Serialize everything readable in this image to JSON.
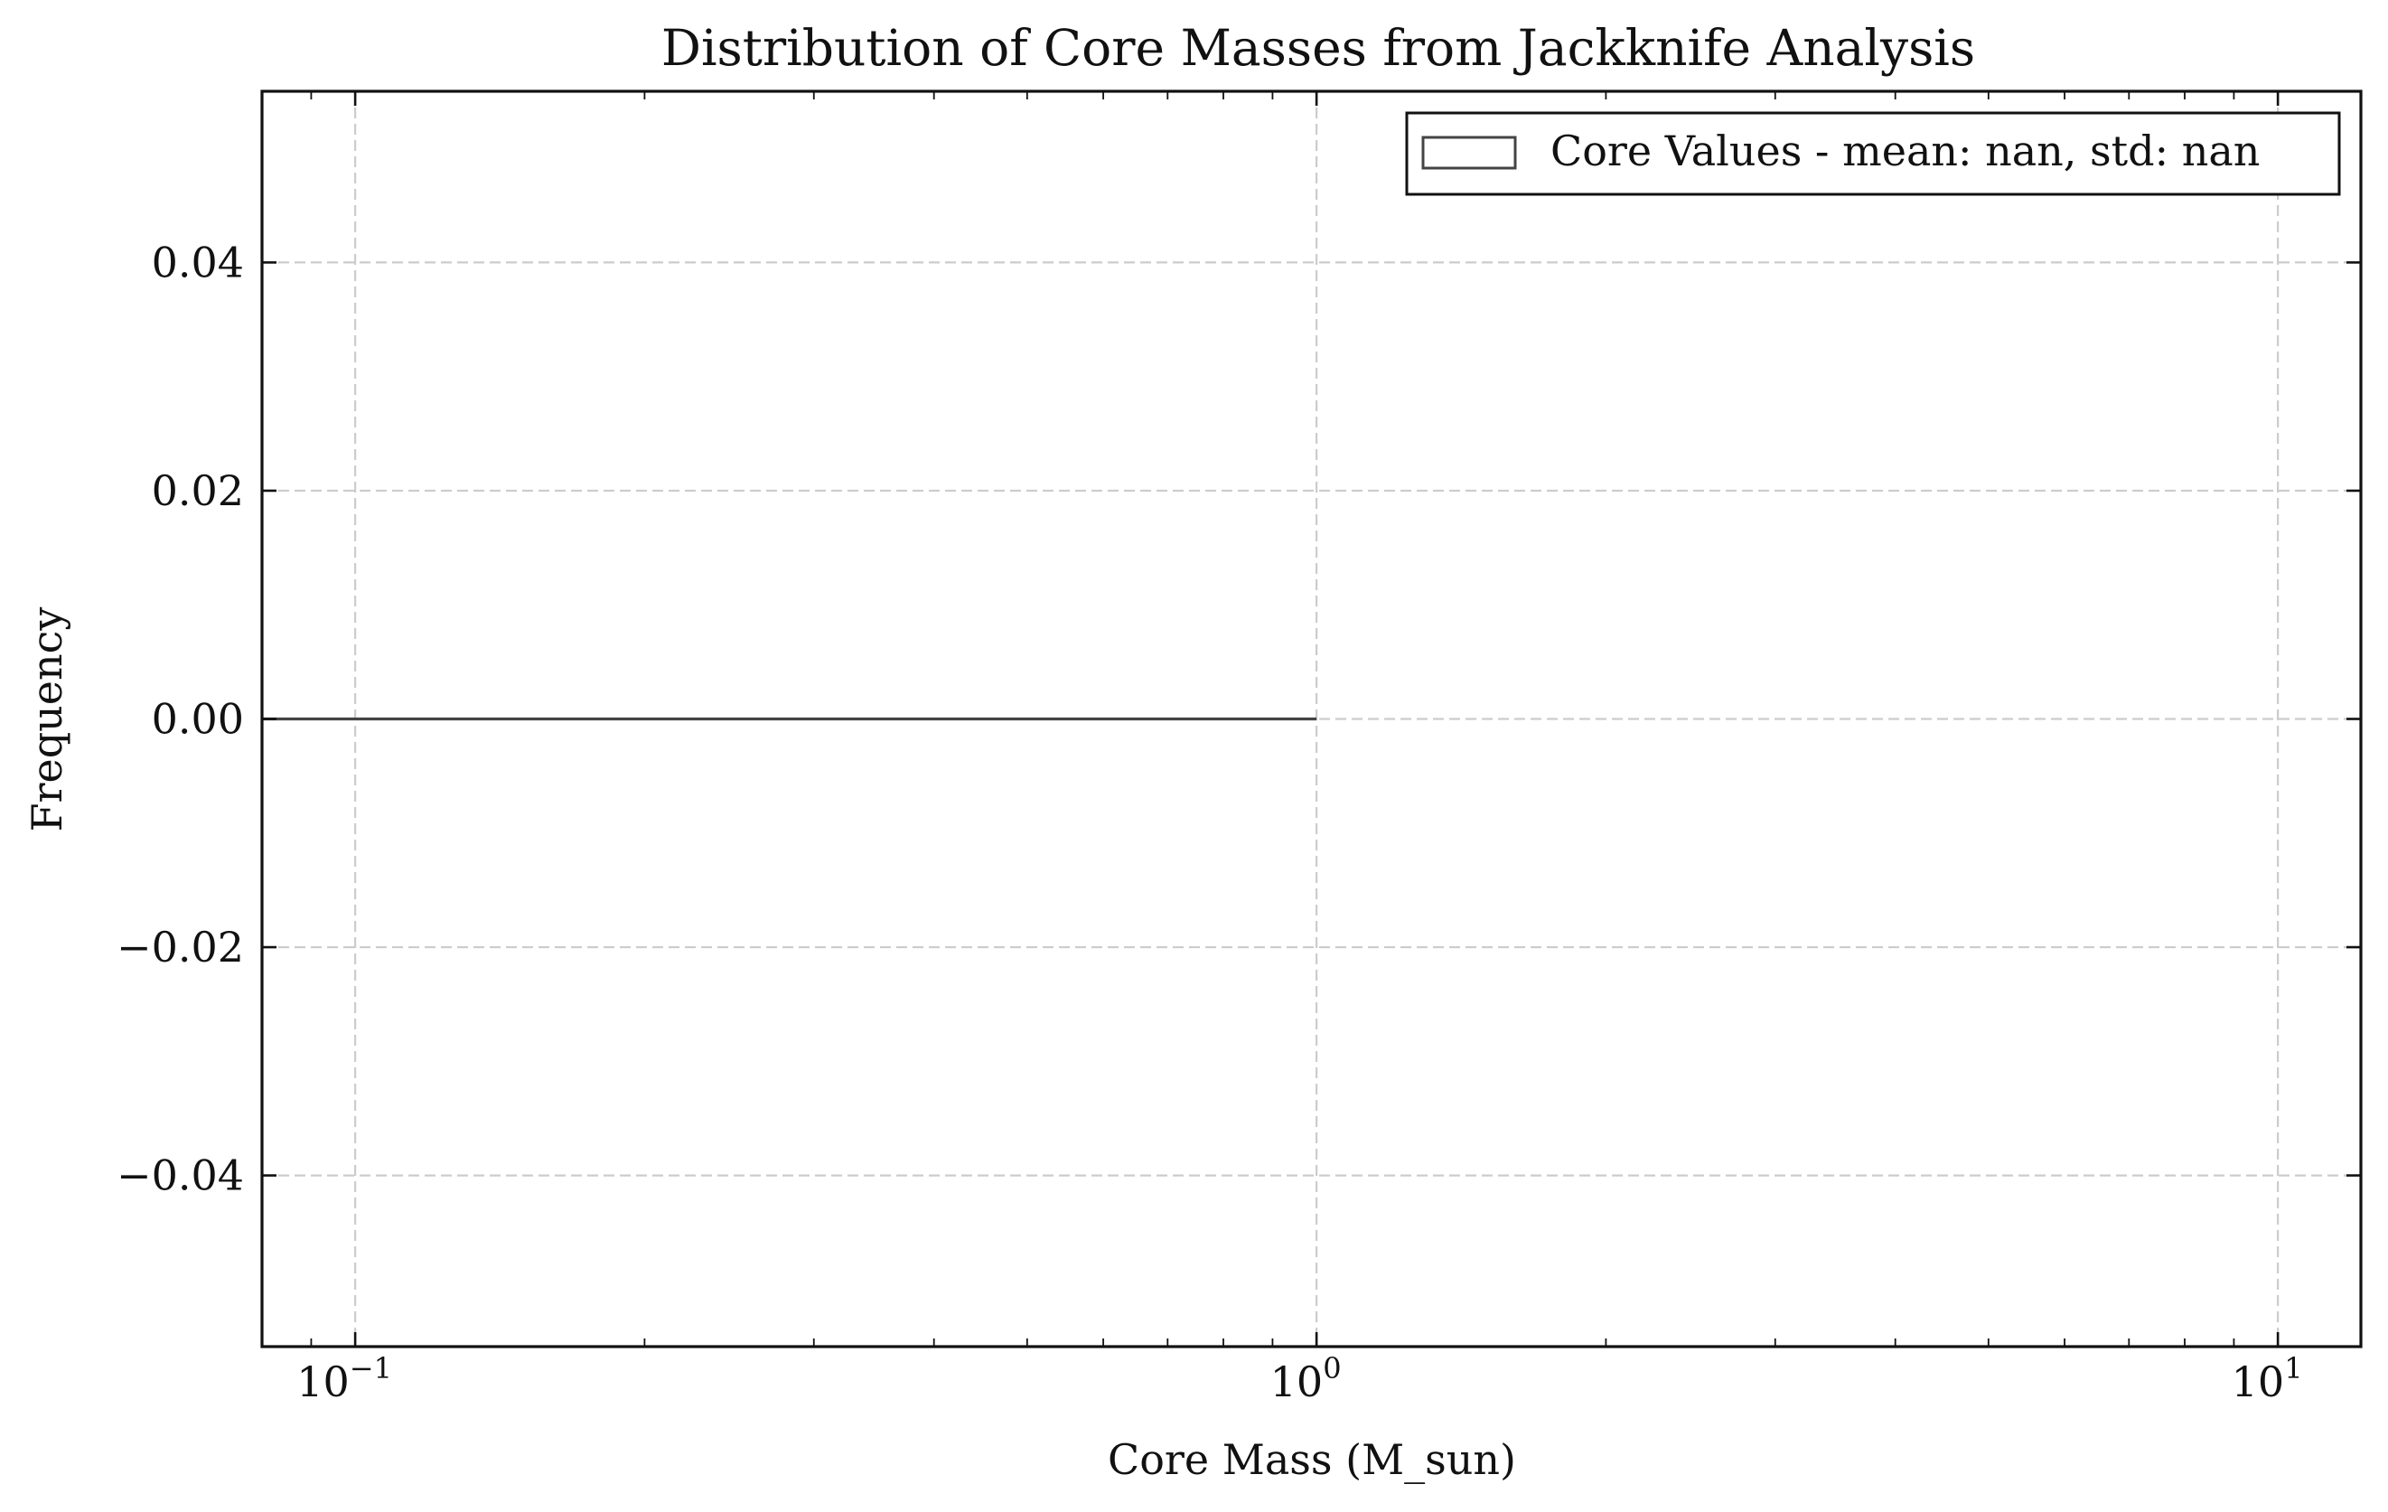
{
  "chart_data": {
    "type": "histogram",
    "title": "Distribution of Core Masses from Jackknife Analysis",
    "xlabel": "Core Mass (M_sun)",
    "ylabel": "Frequency",
    "xscale": "log",
    "xlim": [
      0.08,
      12.2
    ],
    "ylim": [
      -0.055,
      0.055
    ],
    "xticks": [
      {
        "value": 0.1,
        "base": "10",
        "exp": "−1"
      },
      {
        "value": 1,
        "base": "10",
        "exp": "0"
      },
      {
        "value": 10,
        "base": "10",
        "exp": "1"
      }
    ],
    "yticks": [
      {
        "value": 0.04,
        "label": "0.04"
      },
      {
        "value": 0.02,
        "label": "0.02"
      },
      {
        "value": 0.0,
        "label": "0.00"
      },
      {
        "value": -0.02,
        "label": "−0.02"
      },
      {
        "value": -0.04,
        "label": "−0.04"
      }
    ],
    "grid": true,
    "legend": {
      "position": "upper right",
      "entries": [
        "Core Values - mean: nan, std: nan"
      ]
    },
    "series": [
      {
        "name": "Core Values - mean: nan, std: nan",
        "style": "step",
        "color": "#444444",
        "x": [
          0.08,
          1.0
        ],
        "y": [
          0.0,
          0.0
        ]
      }
    ]
  }
}
